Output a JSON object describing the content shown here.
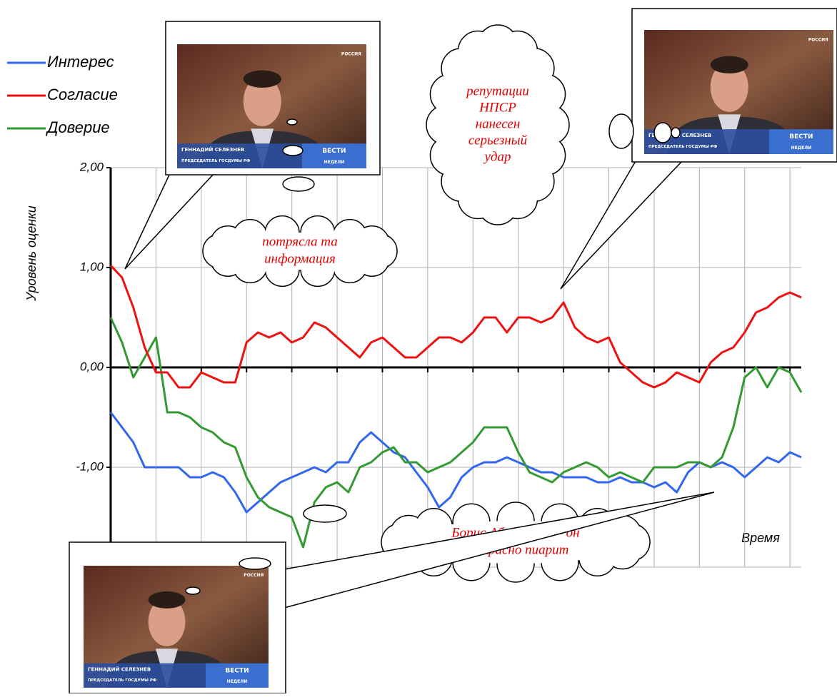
{
  "chart_data": {
    "type": "line",
    "x_label": "Время",
    "y_label": "Уровень оценки",
    "xlim": [
      0,
      61
    ],
    "xticks": [
      4,
      8,
      12,
      16,
      20,
      24,
      28,
      32,
      36,
      40,
      44,
      48,
      52,
      56,
      60
    ],
    "ylim": [
      -2,
      2
    ],
    "yticks": [
      {
        "value": -2,
        "label": "-2,00"
      },
      {
        "value": -1,
        "label": "-1,00"
      },
      {
        "value": 0,
        "label": "0,00"
      },
      {
        "value": 1,
        "label": "1,00"
      },
      {
        "value": 2,
        "label": "2,00"
      }
    ],
    "grid": true,
    "legend": "top-left",
    "series": [
      {
        "name": "Интерес",
        "color": "#3366ee",
        "values": [
          -0.45,
          -0.6,
          -0.75,
          -1.0,
          -1.0,
          -1.0,
          -1.0,
          -1.1,
          -1.1,
          -1.05,
          -1.1,
          -1.25,
          -1.45,
          -1.35,
          -1.25,
          -1.15,
          -1.1,
          -1.05,
          -1.0,
          -1.05,
          -0.95,
          -0.95,
          -0.75,
          -0.65,
          -0.75,
          -0.85,
          -0.9,
          -1.05,
          -1.2,
          -1.4,
          -1.3,
          -1.1,
          -1.0,
          -0.95,
          -0.95,
          -0.9,
          -0.95,
          -1.0,
          -1.05,
          -1.05,
          -1.1,
          -1.1,
          -1.1,
          -1.15,
          -1.15,
          -1.1,
          -1.15,
          -1.15,
          -1.2,
          -1.15,
          -1.25,
          -1.05,
          -0.95,
          -1.0,
          -0.95,
          -1.0,
          -1.1,
          -1.0,
          -0.9,
          -0.95,
          -0.85,
          -0.9
        ]
      },
      {
        "name": "Согласие",
        "color": "#ee1111",
        "values": [
          1.02,
          0.9,
          0.6,
          0.2,
          -0.05,
          -0.05,
          -0.2,
          -0.2,
          -0.05,
          -0.1,
          -0.15,
          -0.15,
          0.25,
          0.35,
          0.3,
          0.35,
          0.25,
          0.3,
          0.45,
          0.4,
          0.3,
          0.2,
          0.1,
          0.25,
          0.3,
          0.2,
          0.1,
          0.1,
          0.2,
          0.3,
          0.3,
          0.25,
          0.35,
          0.5,
          0.5,
          0.35,
          0.5,
          0.5,
          0.45,
          0.5,
          0.65,
          0.4,
          0.3,
          0.25,
          0.3,
          0.05,
          -0.05,
          -0.15,
          -0.2,
          -0.15,
          -0.05,
          -0.1,
          -0.15,
          0.05,
          0.15,
          0.2,
          0.35,
          0.55,
          0.6,
          0.7,
          0.75,
          0.7
        ]
      },
      {
        "name": "Доверие",
        "color": "#339933",
        "values": [
          0.5,
          0.25,
          -0.1,
          0.1,
          0.3,
          -0.45,
          -0.45,
          -0.5,
          -0.6,
          -0.65,
          -0.75,
          -0.8,
          -1.1,
          -1.3,
          -1.4,
          -1.45,
          -1.5,
          -1.8,
          -1.35,
          -1.2,
          -1.15,
          -1.25,
          -1.0,
          -0.95,
          -0.85,
          -0.8,
          -0.95,
          -0.95,
          -1.05,
          -1.0,
          -0.95,
          -0.85,
          -0.75,
          -0.6,
          -0.6,
          -0.6,
          -0.85,
          -1.05,
          -1.1,
          -1.15,
          -1.05,
          -1.0,
          -0.95,
          -1.0,
          -1.1,
          -1.05,
          -1.1,
          -1.15,
          -1.0,
          -1.0,
          -1.0,
          -0.95,
          -0.95,
          -1.0,
          -0.9,
          -0.6,
          -0.1,
          0.0,
          -0.2,
          0.0,
          -0.05,
          -0.25
        ]
      }
    ],
    "annotations": [
      {
        "lines": [
          "потрясла та",
          "информация"
        ]
      },
      {
        "lines": [
          "репутации",
          "НПСР",
          "нанесен",
          "серьезный",
          "удар"
        ]
      },
      {
        "lines": [
          "Борис Абрамович – он",
          "прекрасно пиарит"
        ]
      }
    ],
    "photo_caption": {
      "name": "ГЕННАДИЙ СЕЛЕЗНЕВ",
      "role": "ПРЕДСЕДАТЕЛЬ ГОСДУМЫ РФ",
      "logo": "ВЕСТИ",
      "logo_sub": "НЕДЕЛИ",
      "channel": "РОССИЯ"
    }
  }
}
